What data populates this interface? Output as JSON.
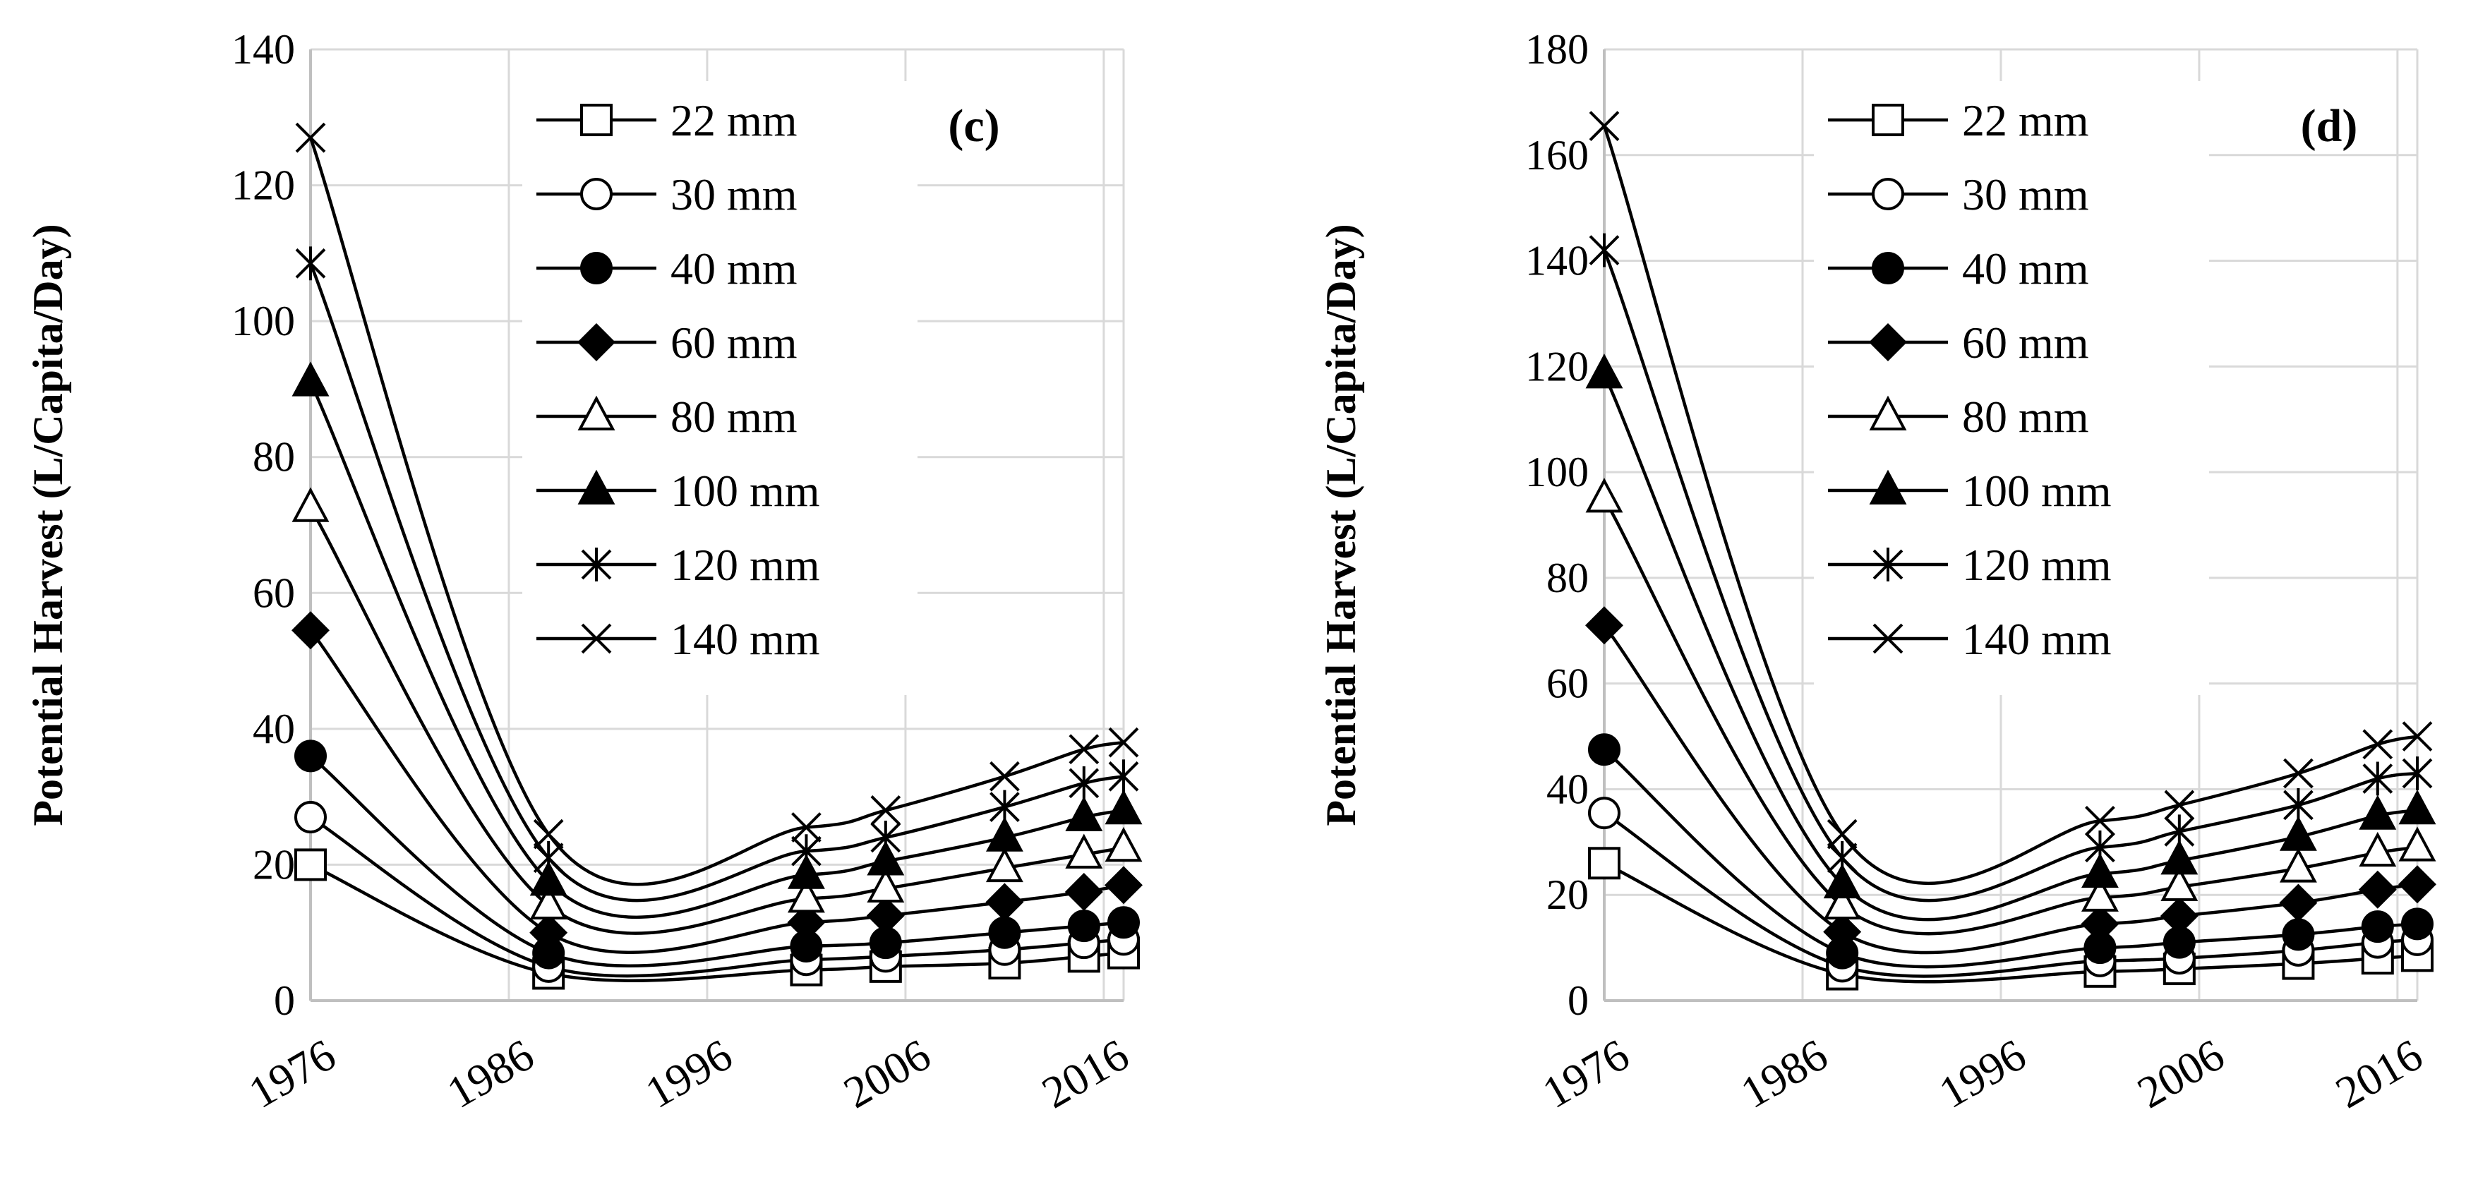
{
  "chart_data": [
    {
      "type": "line",
      "panel_label": "(c)",
      "ylabel": "Potential Harvest (L/Capita/Day)",
      "xlabel": "",
      "x": [
        1976,
        1988,
        2001,
        2005,
        2011,
        2015,
        2017
      ],
      "x_ticks": [
        "1976",
        "1986",
        "1996",
        "2006",
        "2016"
      ],
      "y_ticks": [
        "0",
        "20",
        "40",
        "60",
        "80",
        "100",
        "120",
        "140"
      ],
      "xlim": [
        1976,
        2017
      ],
      "ylim": [
        0,
        140
      ],
      "grid": true,
      "legend_position": "top-right",
      "series": [
        {
          "name": "22 mm",
          "marker": "square-open",
          "values": [
            20,
            4,
            4.5,
            5,
            5.5,
            6.5,
            7
          ]
        },
        {
          "name": "30 mm",
          "marker": "circle-open",
          "values": [
            27,
            5,
            6,
            6.5,
            7.5,
            8.5,
            9
          ]
        },
        {
          "name": "40 mm",
          "marker": "circle-filled",
          "values": [
            36,
            7,
            8,
            8.5,
            10,
            11,
            11.5
          ]
        },
        {
          "name": "60 mm",
          "marker": "diamond-filled",
          "values": [
            54.5,
            10,
            11.5,
            12.5,
            14.5,
            16,
            17
          ]
        },
        {
          "name": "80 mm",
          "marker": "triangle-open",
          "values": [
            72.5,
            14,
            15,
            16.5,
            19.5,
            21.5,
            22.5
          ]
        },
        {
          "name": "100 mm",
          "marker": "triangle-filled",
          "values": [
            91,
            17.5,
            18.5,
            20.5,
            24,
            27,
            28
          ]
        },
        {
          "name": "120 mm",
          "marker": "asterisk",
          "values": [
            108.5,
            21,
            22,
            24,
            28.5,
            32,
            33
          ]
        },
        {
          "name": "140 mm",
          "marker": "x",
          "values": [
            127,
            24.5,
            25.5,
            28,
            33,
            37,
            38
          ]
        }
      ]
    },
    {
      "type": "line",
      "panel_label": "(d)",
      "ylabel": "Potential Harvest (L/Capita/Day)",
      "xlabel": "",
      "x": [
        1976,
        1988,
        2001,
        2005,
        2011,
        2015,
        2017
      ],
      "x_ticks": [
        "1976",
        "1986",
        "1996",
        "2006",
        "2016"
      ],
      "y_ticks": [
        "0",
        "20",
        "40",
        "60",
        "80",
        "100",
        "120",
        "140",
        "160",
        "180"
      ],
      "xlim": [
        1976,
        2017
      ],
      "ylim": [
        0,
        180
      ],
      "grid": true,
      "legend_position": "top-right",
      "series": [
        {
          "name": "22 mm",
          "marker": "square-open",
          "values": [
            26,
            5,
            5.5,
            6,
            7,
            8,
            8.5
          ]
        },
        {
          "name": "30 mm",
          "marker": "circle-open",
          "values": [
            35.5,
            6.5,
            7.5,
            8,
            9.5,
            11,
            11.5
          ]
        },
        {
          "name": "40 mm",
          "marker": "circle-filled",
          "values": [
            47.5,
            9,
            10,
            11,
            12.5,
            14,
            14.5
          ]
        },
        {
          "name": "60 mm",
          "marker": "diamond-filled",
          "values": [
            71,
            13,
            14.5,
            16,
            18.5,
            21,
            22
          ]
        },
        {
          "name": "80 mm",
          "marker": "triangle-open",
          "values": [
            95,
            18,
            19.5,
            21.5,
            25,
            28,
            29
          ]
        },
        {
          "name": "100 mm",
          "marker": "triangle-filled",
          "values": [
            118.5,
            22,
            24,
            26.5,
            31,
            35,
            36
          ]
        },
        {
          "name": "120 mm",
          "marker": "asterisk",
          "values": [
            142,
            27,
            29,
            32,
            37,
            42,
            43
          ]
        },
        {
          "name": "140 mm",
          "marker": "x",
          "values": [
            165.5,
            31.5,
            34,
            37,
            43,
            48.5,
            50
          ]
        }
      ]
    }
  ]
}
